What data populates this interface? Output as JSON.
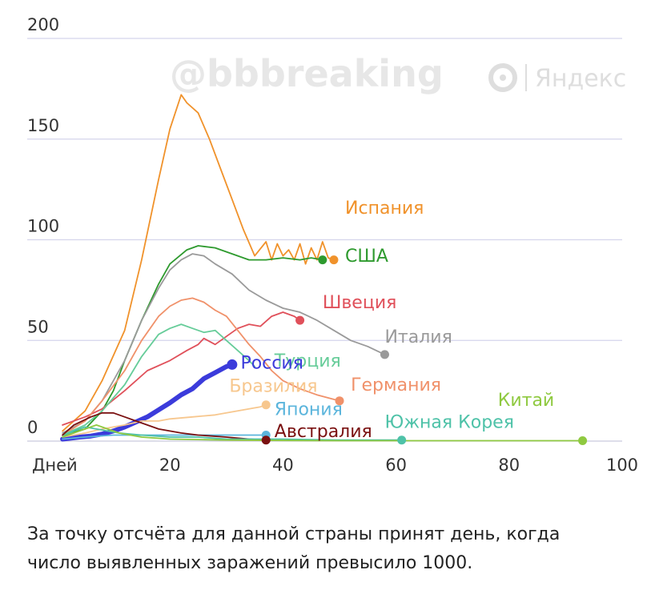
{
  "watermark": "@bbbreaking",
  "brand": "Яндекс",
  "caption_lines": [
    "За точку отсчёта для данной страны принят день, когда",
    "число выявленных заражений превысило 1000."
  ],
  "chart_data": {
    "type": "line",
    "title": "",
    "xlabel": "Дней",
    "ylabel": "",
    "xlim": [
      0,
      100
    ],
    "ylim": [
      0,
      200
    ],
    "x_ticks": [
      {
        "value": 20,
        "label": "20"
      },
      {
        "value": 40,
        "label": "40"
      },
      {
        "value": 60,
        "label": "60"
      },
      {
        "value": 80,
        "label": "80"
      },
      {
        "value": 100,
        "label": "100"
      }
    ],
    "y_ticks": [
      0,
      50,
      100,
      150,
      200
    ],
    "grid": "horizontal",
    "series": [
      {
        "name": "Испания",
        "color": "#f0922b",
        "end_marker": true,
        "points": [
          [
            1,
            5
          ],
          [
            5,
            15
          ],
          [
            8,
            30
          ],
          [
            12,
            55
          ],
          [
            15,
            90
          ],
          [
            18,
            130
          ],
          [
            20,
            155
          ],
          [
            22,
            172
          ],
          [
            23,
            168
          ],
          [
            25,
            163
          ],
          [
            27,
            150
          ],
          [
            29,
            135
          ],
          [
            31,
            120
          ],
          [
            33,
            105
          ],
          [
            35,
            92
          ],
          [
            37,
            99
          ],
          [
            38,
            90
          ],
          [
            39,
            98
          ],
          [
            40,
            92
          ],
          [
            41,
            95
          ],
          [
            42,
            90
          ],
          [
            43,
            98
          ],
          [
            44,
            88
          ],
          [
            45,
            96
          ],
          [
            46,
            90
          ],
          [
            47,
            99
          ],
          [
            48,
            91
          ],
          [
            49,
            90
          ]
        ]
      },
      {
        "name": "США",
        "color": "#2e9a2e",
        "end_marker": true,
        "points": [
          [
            1,
            3
          ],
          [
            5,
            6
          ],
          [
            8,
            15
          ],
          [
            10,
            25
          ],
          [
            12,
            40
          ],
          [
            15,
            60
          ],
          [
            18,
            78
          ],
          [
            20,
            88
          ],
          [
            23,
            95
          ],
          [
            25,
            97
          ],
          [
            28,
            96
          ],
          [
            31,
            93
          ],
          [
            34,
            90
          ],
          [
            37,
            90
          ],
          [
            40,
            91
          ],
          [
            43,
            90
          ],
          [
            45,
            91
          ],
          [
            47,
            90
          ]
        ]
      },
      {
        "name": "Италия",
        "color": "#9a9a9a",
        "end_marker": true,
        "points": [
          [
            1,
            4
          ],
          [
            5,
            10
          ],
          [
            8,
            20
          ],
          [
            12,
            40
          ],
          [
            15,
            60
          ],
          [
            18,
            76
          ],
          [
            20,
            85
          ],
          [
            22,
            90
          ],
          [
            24,
            93
          ],
          [
            26,
            92
          ],
          [
            28,
            88
          ],
          [
            31,
            83
          ],
          [
            34,
            75
          ],
          [
            37,
            70
          ],
          [
            40,
            66
          ],
          [
            43,
            64
          ],
          [
            46,
            60
          ],
          [
            49,
            55
          ],
          [
            52,
            50
          ],
          [
            55,
            47
          ],
          [
            58,
            43
          ]
        ]
      },
      {
        "name": "Швеция",
        "color": "#e0505a",
        "end_marker": true,
        "points": [
          [
            1,
            8
          ],
          [
            5,
            12
          ],
          [
            8,
            16
          ],
          [
            12,
            25
          ],
          [
            16,
            35
          ],
          [
            20,
            40
          ],
          [
            23,
            45
          ],
          [
            25,
            48
          ],
          [
            26,
            51
          ],
          [
            28,
            48
          ],
          [
            30,
            52
          ],
          [
            32,
            56
          ],
          [
            34,
            58
          ],
          [
            36,
            57
          ],
          [
            38,
            62
          ],
          [
            40,
            64
          ],
          [
            42,
            62
          ],
          [
            43,
            60
          ]
        ]
      },
      {
        "name": "Германия",
        "color": "#f0916a",
        "end_marker": true,
        "points": [
          [
            1,
            3
          ],
          [
            5,
            10
          ],
          [
            8,
            20
          ],
          [
            12,
            35
          ],
          [
            15,
            50
          ],
          [
            18,
            62
          ],
          [
            20,
            67
          ],
          [
            22,
            70
          ],
          [
            24,
            71
          ],
          [
            26,
            69
          ],
          [
            28,
            65
          ],
          [
            30,
            62
          ],
          [
            32,
            55
          ],
          [
            34,
            48
          ],
          [
            36,
            42
          ],
          [
            38,
            35
          ],
          [
            40,
            30
          ],
          [
            43,
            26
          ],
          [
            46,
            23
          ],
          [
            50,
            20
          ]
        ]
      },
      {
        "name": "Турция",
        "color": "#66cc99",
        "end_marker": false,
        "points": [
          [
            1,
            3
          ],
          [
            5,
            8
          ],
          [
            8,
            15
          ],
          [
            12,
            28
          ],
          [
            15,
            42
          ],
          [
            18,
            53
          ],
          [
            20,
            56
          ],
          [
            22,
            58
          ],
          [
            24,
            56
          ],
          [
            26,
            54
          ],
          [
            28,
            55
          ],
          [
            30,
            50
          ],
          [
            32,
            45
          ],
          [
            34,
            40
          ],
          [
            35,
            37
          ]
        ]
      },
      {
        "name": "Россия",
        "color": "#3b3bdb",
        "end_marker": true,
        "bold": true,
        "points": [
          [
            1,
            1
          ],
          [
            4,
            2
          ],
          [
            6,
            2.5
          ],
          [
            8,
            3.5
          ],
          [
            10,
            5
          ],
          [
            12,
            7
          ],
          [
            14,
            9.5
          ],
          [
            16,
            12
          ],
          [
            18,
            15.5
          ],
          [
            20,
            19
          ],
          [
            22,
            23
          ],
          [
            24,
            26
          ],
          [
            26,
            31
          ],
          [
            28,
            34
          ],
          [
            30,
            37
          ],
          [
            31,
            38
          ]
        ]
      },
      {
        "name": "Бразилия",
        "color": "#f7c78e",
        "end_marker": true,
        "points": [
          [
            1,
            2
          ],
          [
            5,
            4
          ],
          [
            8,
            6
          ],
          [
            12,
            8
          ],
          [
            15,
            10
          ],
          [
            18,
            10
          ],
          [
            20,
            11
          ],
          [
            24,
            12
          ],
          [
            28,
            13
          ],
          [
            30,
            14
          ],
          [
            32,
            15
          ],
          [
            34,
            16
          ],
          [
            36,
            17
          ],
          [
            37,
            18
          ]
        ]
      },
      {
        "name": "Япония",
        "color": "#5bb5dc",
        "end_marker": true,
        "points": [
          [
            1,
            1
          ],
          [
            5,
            2
          ],
          [
            10,
            3
          ],
          [
            15,
            3
          ],
          [
            20,
            3
          ],
          [
            25,
            3
          ],
          [
            30,
            3
          ],
          [
            35,
            3
          ],
          [
            37,
            3
          ]
        ]
      },
      {
        "name": "Австралия",
        "color": "#7a1010",
        "end_marker": true,
        "points": [
          [
            1,
            3
          ],
          [
            3,
            8
          ],
          [
            6,
            12
          ],
          [
            8,
            14
          ],
          [
            10,
            14
          ],
          [
            12,
            12
          ],
          [
            14,
            10
          ],
          [
            16,
            8
          ],
          [
            18,
            6
          ],
          [
            20,
            5
          ],
          [
            22,
            4
          ],
          [
            25,
            3
          ],
          [
            30,
            2
          ],
          [
            34,
            1
          ],
          [
            37,
            0.5
          ]
        ]
      },
      {
        "name": "Южная Корея",
        "color": "#4ec2a8",
        "end_marker": true,
        "points": [
          [
            1,
            2
          ],
          [
            3,
            5
          ],
          [
            5,
            7
          ],
          [
            7,
            6
          ],
          [
            9,
            5
          ],
          [
            11,
            4
          ],
          [
            15,
            3
          ],
          [
            20,
            2
          ],
          [
            25,
            2
          ],
          [
            30,
            1
          ],
          [
            40,
            1
          ],
          [
            50,
            0.5
          ],
          [
            61,
            0.5
          ]
        ]
      },
      {
        "name": "Китай",
        "color": "#8fc940",
        "end_marker": true,
        "points": [
          [
            1,
            2
          ],
          [
            3,
            4
          ],
          [
            5,
            6
          ],
          [
            7,
            8
          ],
          [
            9,
            6
          ],
          [
            11,
            4
          ],
          [
            13,
            3
          ],
          [
            15,
            2
          ],
          [
            20,
            1
          ],
          [
            30,
            0.5
          ],
          [
            40,
            0.3
          ],
          [
            50,
            0.2
          ],
          [
            60,
            0.2
          ],
          [
            70,
            0.2
          ],
          [
            80,
            0.2
          ],
          [
            93,
            0.2
          ]
        ]
      }
    ],
    "labels": [
      {
        "text": "Испания",
        "color": "#f0922b"
      },
      {
        "text": "США",
        "color": "#2e9a2e"
      },
      {
        "text": "Швеция",
        "color": "#e0505a"
      },
      {
        "text": "Италия",
        "color": "#9a9a9a"
      },
      {
        "text": "Турция",
        "color": "#66cc99"
      },
      {
        "text": "Россия",
        "color": "#3b3bdb"
      },
      {
        "text": "Германия",
        "color": "#f0916a"
      },
      {
        "text": "Бразилия",
        "color": "#f7c78e"
      },
      {
        "text": "Китай",
        "color": "#8fc940"
      },
      {
        "text": "Япония",
        "color": "#5bb5dc"
      },
      {
        "text": "Южная Корея",
        "color": "#4ec2a8"
      },
      {
        "text": "Австралия",
        "color": "#7a1010"
      }
    ]
  }
}
